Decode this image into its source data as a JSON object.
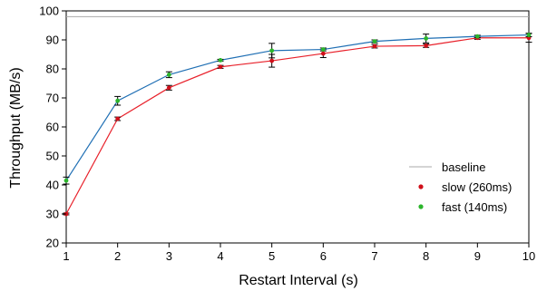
{
  "chart_data": {
    "type": "line",
    "xlabel": "Restart Interval (s)",
    "ylabel": "Throughput (MB/s)",
    "x": [
      1,
      2,
      3,
      4,
      5,
      6,
      7,
      8,
      9,
      10
    ],
    "xlim": [
      1,
      10
    ],
    "ylim": [
      20,
      100
    ],
    "yticks": [
      20,
      30,
      40,
      50,
      60,
      70,
      80,
      90,
      100
    ],
    "grid": false,
    "legend_position": "bottom-right",
    "baseline": {
      "name": "baseline",
      "value": 98,
      "color": "#aaaaaa"
    },
    "series": [
      {
        "name": "slow (260ms)",
        "line_color": "#e8202a",
        "marker_color": "#d0101a",
        "values": [
          30,
          62.8,
          73.5,
          80.7,
          82.8,
          85.3,
          87.8,
          88,
          90.7,
          90.7
        ],
        "error": [
          0.3,
          0.6,
          0.8,
          0.5,
          2.2,
          1.4,
          0.6,
          0.6,
          0.5,
          1.5
        ]
      },
      {
        "name": "fast (140ms)",
        "line_color": "#1f6fb4",
        "marker_color": "#2cb52c",
        "values": [
          41.5,
          69,
          78,
          83,
          86.3,
          86.7,
          89.5,
          90.5,
          91.2,
          91.7
        ],
        "error": [
          1.2,
          1.5,
          1.0,
          0.3,
          2.5,
          0.5,
          0.5,
          1.5,
          0.4,
          0.6
        ]
      }
    ]
  }
}
